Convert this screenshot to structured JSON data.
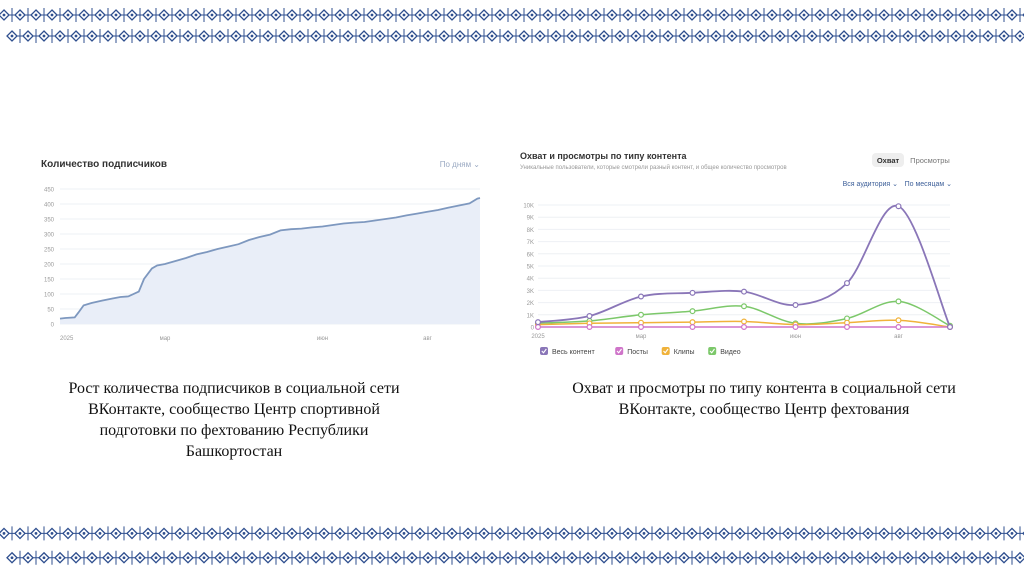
{
  "colors": {
    "ornament": "#2f4f8f",
    "subs_line": "#7e98bf",
    "subs_fill": "#e9eef8",
    "reach_total": "#8a76b8",
    "posts": "#cf74c9",
    "clips": "#f0b23a",
    "video": "#7cc86a"
  },
  "caption_left": "Рост количества подписчиков в социальной сети ВКонтакте, сообщество Центр спортивной подготовки по фехтованию Республики Башкортостан",
  "caption_right": "Охват и просмотры по типу контента в социальной сети ВКонтакте, сообщество Центр фехтования",
  "chart_data": [
    {
      "type": "area",
      "title": "Количество подписчиков",
      "control": "По дням ⌄",
      "xlabel": "",
      "ylabel": "",
      "ylim": [
        0,
        450
      ],
      "y_ticks": [
        0,
        50,
        100,
        150,
        200,
        250,
        300,
        350,
        400,
        450
      ],
      "x_tick_labels": [
        "2025",
        "мар",
        "июн",
        "авг"
      ],
      "x_tick_positions": [
        0,
        2,
        5,
        7
      ],
      "xlim": [
        0,
        8
      ],
      "grid": true,
      "series": [
        {
          "x": [
            0,
            0.1,
            0.28,
            0.35,
            0.45,
            0.6,
            0.8,
            1.0,
            1.15,
            1.3,
            1.5,
            1.6,
            1.75,
            1.85,
            2.0,
            2.2,
            2.4,
            2.6,
            2.8,
            3.0,
            3.2,
            3.4,
            3.6,
            3.8,
            4.0,
            4.2,
            4.4,
            4.6,
            4.8,
            5.0,
            5.2,
            5.4,
            5.6,
            5.8,
            6.0,
            6.2,
            6.4,
            6.6,
            6.8,
            7.0,
            7.2,
            7.4,
            7.6,
            7.8,
            7.95,
            8.0
          ],
          "values": [
            18,
            20,
            22,
            38,
            62,
            70,
            78,
            85,
            90,
            92,
            108,
            150,
            185,
            195,
            200,
            210,
            220,
            232,
            240,
            250,
            258,
            266,
            280,
            290,
            298,
            312,
            316,
            318,
            322,
            325,
            330,
            335,
            338,
            340,
            345,
            350,
            355,
            362,
            368,
            374,
            380,
            388,
            395,
            402,
            418,
            420
          ]
        }
      ]
    },
    {
      "type": "line",
      "title": "Охват и просмотры по типу контента",
      "subtitle": "Уникальные пользователи, которые смотрели разный контент, и общее количество просмотров",
      "tabs": [
        "Охват",
        "Просмотры"
      ],
      "active_tab": "Охват",
      "filters": [
        "Вся аудитория ⌄",
        "По месяцам ⌄"
      ],
      "xlabel": "",
      "ylabel": "",
      "ylim": [
        0,
        10000
      ],
      "y_ticks": [
        0,
        1000,
        2000,
        3000,
        4000,
        5000,
        6000,
        7000,
        8000,
        9000,
        10000
      ],
      "y_tick_labels": [
        "0",
        "1K",
        "2K",
        "3K",
        "4K",
        "5K",
        "6K",
        "7K",
        "8K",
        "9K",
        "10K"
      ],
      "x_tick_labels": [
        "2025",
        "мар",
        "июн",
        "авг"
      ],
      "x_tick_positions": [
        0,
        2,
        5,
        7
      ],
      "xlim": [
        0,
        8
      ],
      "x": [
        0,
        1,
        2,
        3,
        4,
        5,
        6,
        7,
        8
      ],
      "grid": true,
      "series": [
        {
          "name": "Весь контент",
          "values": [
            400,
            900,
            2500,
            2800,
            2900,
            1800,
            3600,
            9900,
            0
          ]
        },
        {
          "name": "Посты",
          "values": [
            0,
            0,
            0,
            0,
            0,
            0,
            0,
            0,
            0
          ]
        },
        {
          "name": "Клипы",
          "values": [
            200,
            300,
            350,
            400,
            450,
            200,
            350,
            550,
            0
          ]
        },
        {
          "name": "Видео",
          "values": [
            300,
            500,
            1000,
            1300,
            1700,
            300,
            700,
            2100,
            100
          ]
        }
      ]
    }
  ]
}
